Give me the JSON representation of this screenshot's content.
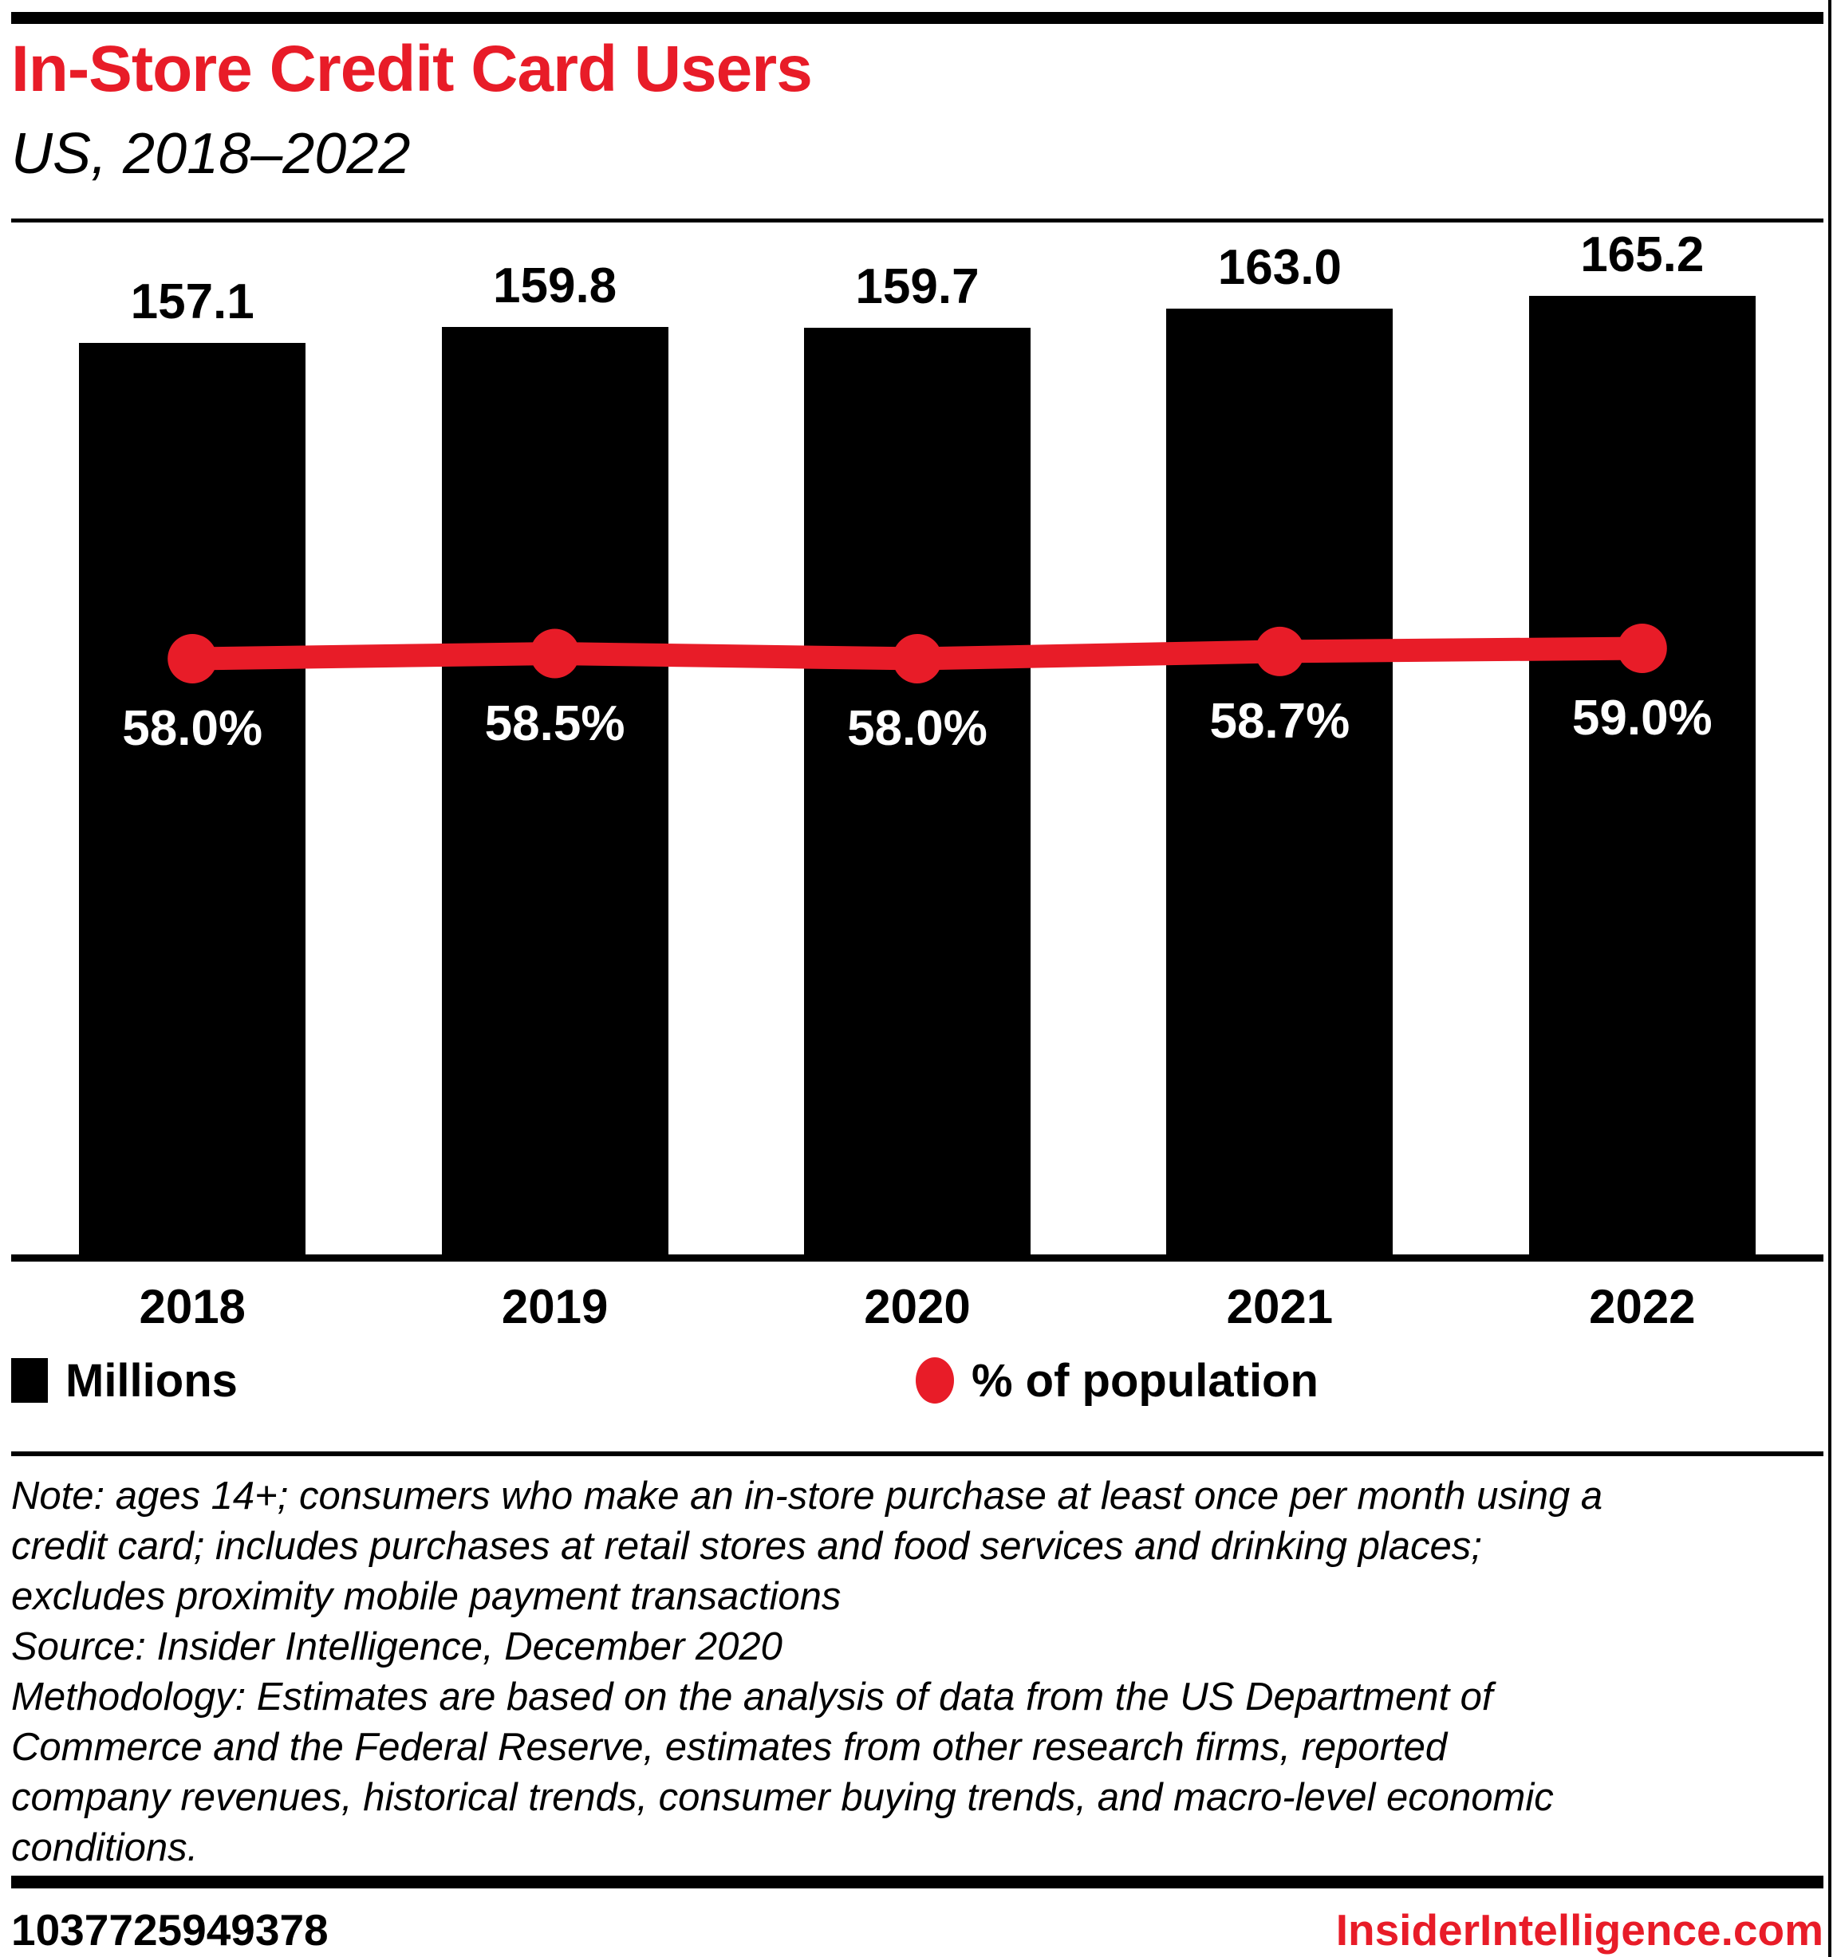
{
  "page": {
    "title": "In-Store Credit Card Users",
    "subtitle": "US, 2018–2022",
    "footer_id": "1037725949378",
    "footer_site": "InsiderIntelligence.com"
  },
  "legend": {
    "bars_label": "Millions",
    "line_label": "% of population"
  },
  "note_lines": [
    "Note: ages 14+; consumers who make an in-store purchase at least once per month using a",
    "credit card; includes purchases at retail stores and food services and drinking places;",
    "excludes proximity mobile payment transactions",
    "Source: Insider Intelligence, December 2020",
    "Methodology: Estimates are based on the analysis of data from the US Department of",
    "Commerce and the Federal Reserve, estimates from other research firms, reported",
    "company revenues, historical trends, consumer buying trends, and macro-level economic",
    "conditions."
  ],
  "chart_data": {
    "type": "bar",
    "title": "In-Store Credit Card Users",
    "subtitle": "US, 2018–2022",
    "categories": [
      "2018",
      "2019",
      "2020",
      "2021",
      "2022"
    ],
    "series": [
      {
        "name": "Millions",
        "type": "bar",
        "color": "#000000",
        "values": [
          157.1,
          159.8,
          159.7,
          163.0,
          165.2
        ],
        "labels": [
          "157.1",
          "159.8",
          "159.7",
          "163.0",
          "165.2"
        ]
      },
      {
        "name": "% of population",
        "type": "line",
        "color": "#e81c28",
        "values": [
          58.0,
          58.5,
          58.0,
          58.7,
          59.0
        ],
        "labels": [
          "58.0%",
          "58.5%",
          "58.0%",
          "58.7%",
          "59.0%"
        ]
      }
    ],
    "ylim_bars": [
      0,
      170
    ],
    "ylim_line_pct": [
      55,
      62
    ],
    "grid": false,
    "legend_position": "bottom"
  },
  "colors": {
    "accent_red": "#e81c28",
    "bar_black": "#000000",
    "background": "#ffffff"
  }
}
